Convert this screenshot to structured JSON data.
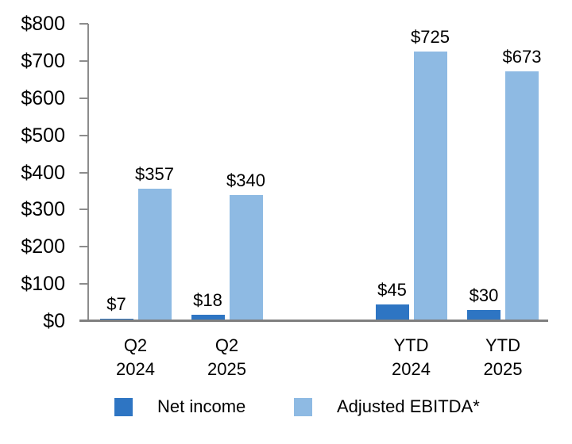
{
  "chart_data": {
    "type": "bar",
    "title": "",
    "xlabel": "",
    "ylabel": "",
    "categories": [
      "Q2 2024",
      "Q2 2025",
      "YTD 2024",
      "YTD 2025"
    ],
    "category_label_lines": [
      [
        "Q2",
        "2024"
      ],
      [
        "Q2",
        "2025"
      ],
      [
        "YTD",
        "2024"
      ],
      [
        "YTD",
        "2025"
      ]
    ],
    "series": [
      {
        "name": "Net income",
        "color": "#2E75C3",
        "values": [
          7,
          18,
          45,
          30
        ],
        "data_labels": [
          "$7",
          "$18",
          "$45",
          "$30"
        ]
      },
      {
        "name": "Adjusted EBITDA*",
        "color": "#8EBAE3",
        "values": [
          357,
          340,
          725,
          673
        ],
        "data_labels": [
          "$357",
          "$340",
          "$725",
          "$673"
        ]
      }
    ],
    "ylim": [
      0,
      800
    ],
    "ytick_step": 100,
    "ytick_labels": [
      "$0",
      "$100",
      "$200",
      "$300",
      "$400",
      "$500",
      "$600",
      "$700",
      "$800"
    ],
    "grid": false,
    "legend_position": "bottom",
    "background_color": "#FFFFFF",
    "axis_color": "#8C8C8C",
    "text_color": "#000000"
  }
}
